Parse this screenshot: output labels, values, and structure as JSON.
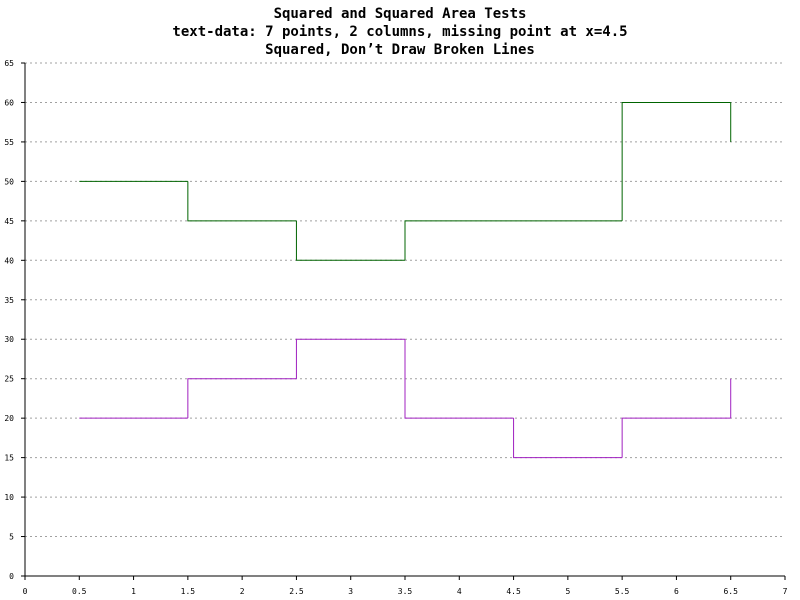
{
  "chart_data": {
    "type": "step",
    "title": [
      "Squared and Squared Area Tests",
      "text-data: 7 points, 2 columns, missing point at x=4.5",
      "Squared, Don’t Draw Broken Lines"
    ],
    "x": [
      0.5,
      1.5,
      2.5,
      3.5,
      4.5,
      5.5,
      6.5
    ],
    "series": [
      {
        "color": "#006400",
        "values": [
          50,
          45,
          40,
          45,
          null,
          60,
          55
        ]
      },
      {
        "color": "#a020c0",
        "values": [
          20,
          25,
          30,
          20,
          15,
          20,
          25
        ]
      }
    ],
    "xlim": [
      0,
      7
    ],
    "xticks": [
      0,
      0.5,
      1,
      1.5,
      2,
      2.5,
      3,
      3.5,
      4,
      4.5,
      5,
      5.5,
      6,
      6.5,
      7
    ],
    "ylim": [
      0,
      65
    ],
    "yticks": [
      0,
      5,
      10,
      15,
      20,
      25,
      30,
      35,
      40,
      45,
      50,
      55,
      60,
      65
    ],
    "grid": true
  }
}
